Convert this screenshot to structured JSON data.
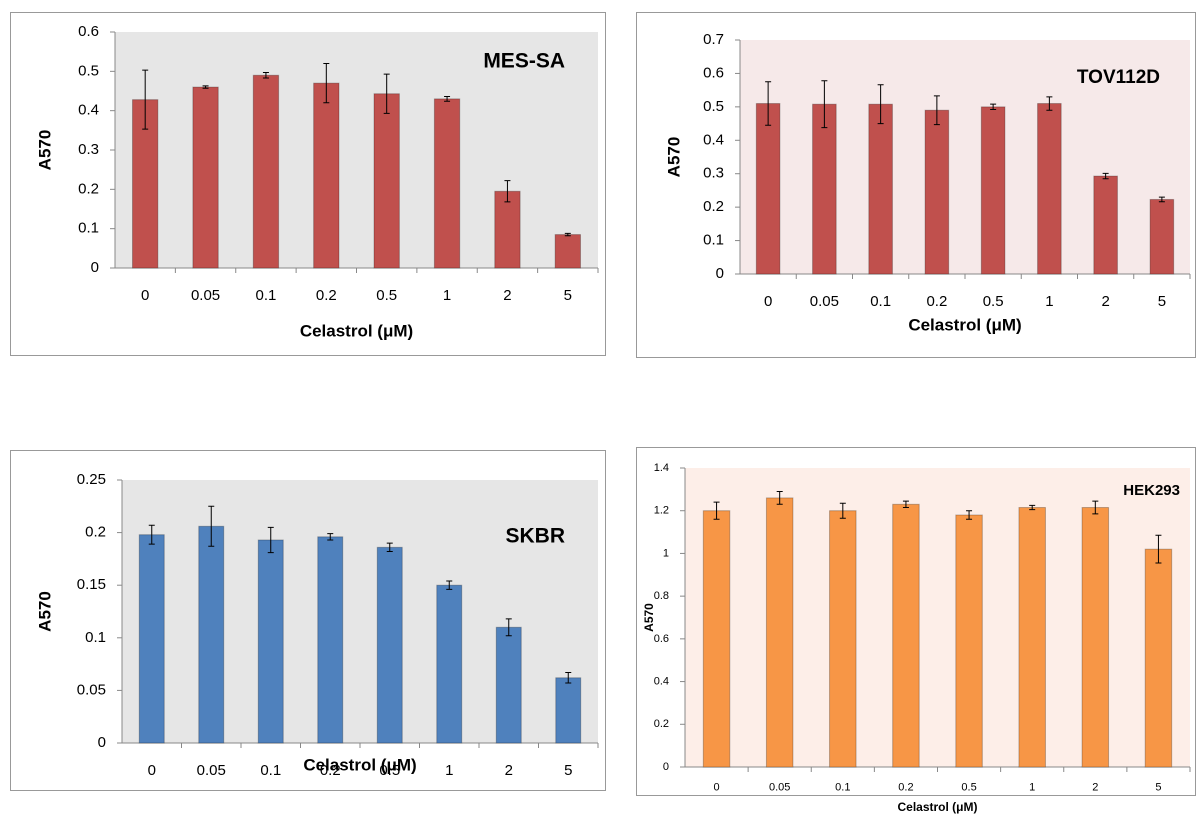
{
  "chart_data": [
    {
      "type": "bar",
      "title": "MES-SA",
      "x_label": "Celastrol (μM)",
      "y_label": "A570",
      "categories": [
        "0",
        "0.05",
        "0.1",
        "0.2",
        "0.5",
        "1",
        "2",
        "5"
      ],
      "values": [
        0.428,
        0.46,
        0.49,
        0.47,
        0.443,
        0.43,
        0.195,
        0.085
      ],
      "errors": [
        0.075,
        0.003,
        0.007,
        0.05,
        0.05,
        0.006,
        0.027,
        0.003
      ],
      "color": "#c0504d",
      "plot_background": "#e6e6e6",
      "ylim": [
        0,
        0.6
      ],
      "yticks": [
        0,
        0.1,
        0.2,
        0.3,
        0.4,
        0.5,
        0.6
      ],
      "grid": false
    },
    {
      "type": "bar",
      "title": "TOV112D",
      "x_label": "Celastrol (μM)",
      "y_label": "A570",
      "categories": [
        "0",
        "0.05",
        "0.1",
        "0.2",
        "0.5",
        "1",
        "2",
        "5"
      ],
      "values": [
        0.51,
        0.508,
        0.508,
        0.49,
        0.5,
        0.51,
        0.293,
        0.223
      ],
      "errors": [
        0.065,
        0.07,
        0.058,
        0.043,
        0.008,
        0.02,
        0.008,
        0.007
      ],
      "color": "#c0504d",
      "plot_background": "#f6e9e9",
      "ylim": [
        0,
        0.7
      ],
      "yticks": [
        0,
        0.1,
        0.2,
        0.3,
        0.4,
        0.5,
        0.6,
        0.7
      ],
      "grid": false
    },
    {
      "type": "bar",
      "title": "SKBR",
      "x_label": "Celastrol (μM)",
      "y_label": "A570",
      "categories": [
        "0",
        "0.05",
        "0.1",
        "0.2",
        "0.5",
        "1",
        "2",
        "5"
      ],
      "values": [
        0.198,
        0.206,
        0.193,
        0.196,
        0.186,
        0.15,
        0.11,
        0.062
      ],
      "errors": [
        0.009,
        0.019,
        0.012,
        0.003,
        0.004,
        0.004,
        0.008,
        0.005
      ],
      "color": "#4f81bd",
      "plot_background": "#e6e6e6",
      "ylim": [
        0,
        0.25
      ],
      "yticks": [
        0,
        0.05,
        0.1,
        0.15,
        0.2,
        0.25
      ],
      "grid": false
    },
    {
      "type": "bar",
      "title": "HEK293",
      "x_label": "Celastrol (μM)",
      "y_label": "A570",
      "categories": [
        "0",
        "0.05",
        "0.1",
        "0.2",
        "0.5",
        "1",
        "2",
        "5"
      ],
      "values": [
        1.2,
        1.26,
        1.2,
        1.23,
        1.18,
        1.215,
        1.215,
        1.02
      ],
      "errors": [
        0.04,
        0.03,
        0.035,
        0.015,
        0.02,
        0.01,
        0.03,
        0.065
      ],
      "color": "#f79646",
      "plot_background": "#fdeee8",
      "ylim": [
        0,
        1.4
      ],
      "yticks": [
        0,
        0.2,
        0.4,
        0.6,
        0.8,
        1,
        1.2,
        1.4
      ],
      "grid": false
    }
  ]
}
